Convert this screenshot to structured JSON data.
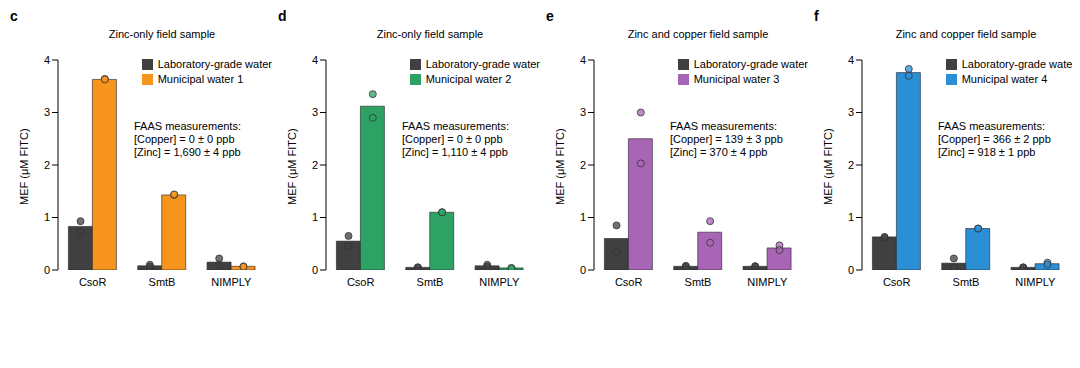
{
  "chart_data": [
    {
      "type": "bar",
      "panel_label": "c",
      "title": "Zinc-only field sample",
      "ylabel": "MEF (μM FITC)",
      "categories": [
        "CsoR",
        "SmtB",
        "NIMPLY"
      ],
      "series": [
        {
          "name": "Laboratory-grade water",
          "color": "#404040",
          "values": [
            0.83,
            0.08,
            0.15
          ],
          "replicates": [
            [
              0.93,
              0.73
            ],
            [
              0.1,
              0.06
            ],
            [
              0.22,
              0.1
            ]
          ]
        },
        {
          "name": "Municipal water 1",
          "color": "#f7941d",
          "values": [
            3.63,
            1.43,
            0.07
          ],
          "replicates": [
            [
              3.64,
              3.63
            ],
            [
              1.43,
              1.44
            ],
            [
              0.07,
              0.06
            ]
          ]
        }
      ],
      "ylim": [
        0,
        4
      ],
      "yticks": [
        0,
        1,
        2,
        3,
        4
      ],
      "grid": false,
      "legend": "upper right",
      "annotations": [
        "FAAS measurements:",
        "[Copper] = 0 ± 0 ppb",
        "[Zinc] = 1,690 ± 4 ppb"
      ]
    },
    {
      "type": "bar",
      "panel_label": "d",
      "title": "Zinc-only field sample",
      "ylabel": "MEF (μM FITC)",
      "categories": [
        "CsoR",
        "SmtB",
        "NIMPLY"
      ],
      "series": [
        {
          "name": "Laboratory-grade water",
          "color": "#404040",
          "values": [
            0.55,
            0.05,
            0.08
          ],
          "replicates": [
            [
              0.65,
              0.45
            ],
            [
              0.05,
              0.05
            ],
            [
              0.1,
              0.06
            ]
          ]
        },
        {
          "name": "Municipal water 2",
          "color": "#2ea265",
          "values": [
            3.12,
            1.1,
            0.04
          ],
          "replicates": [
            [
              3.35,
              2.9
            ],
            [
              1.1,
              1.1
            ],
            [
              0.04,
              0.03
            ]
          ]
        }
      ],
      "ylim": [
        0,
        4
      ],
      "yticks": [
        0,
        1,
        2,
        3,
        4
      ],
      "grid": false,
      "legend": "upper right",
      "annotations": [
        "FAAS measurements:",
        "[Copper] = 0 ± 0 ppb",
        "[Zinc] = 1,110 ± 4 ppb"
      ]
    },
    {
      "type": "bar",
      "panel_label": "e",
      "title": "Zinc and copper field sample",
      "ylabel": "MEF (μM FITC)",
      "categories": [
        "CsoR",
        "SmtB",
        "NIMPLY"
      ],
      "series": [
        {
          "name": "Laboratory-grade water",
          "color": "#404040",
          "values": [
            0.6,
            0.07,
            0.07
          ],
          "replicates": [
            [
              0.85,
              0.35
            ],
            [
              0.08,
              0.06
            ],
            [
              0.07,
              0.07
            ]
          ]
        },
        {
          "name": "Municipal water 3",
          "color": "#a965b5",
          "values": [
            2.5,
            0.72,
            0.42
          ],
          "replicates": [
            [
              3.0,
              2.03
            ],
            [
              0.93,
              0.52
            ],
            [
              0.47,
              0.38
            ]
          ]
        }
      ],
      "ylim": [
        0,
        4
      ],
      "yticks": [
        0,
        1,
        2,
        3,
        4
      ],
      "grid": false,
      "legend": "upper right",
      "annotations": [
        "FAAS measurements:",
        "[Copper] = 139 ± 3 ppb",
        "[Zinc] = 370 ± 4 ppb"
      ]
    },
    {
      "type": "bar",
      "panel_label": "f",
      "title": "Zinc and copper field sample",
      "ylabel": "MEF (μM FITC)",
      "categories": [
        "CsoR",
        "SmtB",
        "NIMPLY"
      ],
      "series": [
        {
          "name": "Laboratory-grade water",
          "color": "#404040",
          "values": [
            0.63,
            0.13,
            0.05
          ],
          "replicates": [
            [
              0.62,
              0.63
            ],
            [
              0.22,
              0.05
            ],
            [
              0.05,
              0.05
            ]
          ]
        },
        {
          "name": "Municipal water 4",
          "color": "#2b8fd6",
          "values": [
            3.76,
            0.79,
            0.12
          ],
          "replicates": [
            [
              3.83,
              3.7
            ],
            [
              0.79,
              0.79
            ],
            [
              0.14,
              0.1
            ]
          ]
        }
      ],
      "ylim": [
        0,
        4
      ],
      "yticks": [
        0,
        1,
        2,
        3,
        4
      ],
      "grid": false,
      "legend": "upper right",
      "annotations": [
        "FAAS measurements:",
        "[Copper] = 366 ± 2 ppb",
        "[Zinc] = 918 ± 1 ppb"
      ]
    }
  ]
}
